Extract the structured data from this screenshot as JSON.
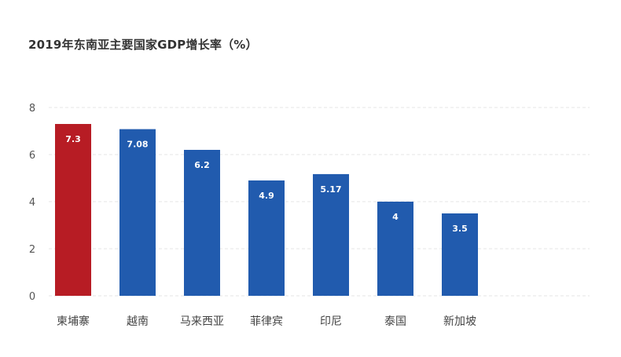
{
  "chart_data": {
    "type": "bar",
    "title": "2019年东南亚主要国家GDP增长率（%）",
    "categories": [
      "柬埔寨",
      "越南",
      "马来西亚",
      "菲律宾",
      "印尼",
      "泰国",
      "新加坡"
    ],
    "values": [
      7.3,
      7.08,
      6.2,
      4.9,
      5.17,
      4,
      3.5
    ],
    "value_labels": [
      "7.3",
      "7.08",
      "6.2",
      "4.9",
      "5.17",
      "4",
      "3.5"
    ],
    "y_ticks": [
      0,
      2,
      4,
      6,
      8
    ],
    "ylim": [
      0,
      8
    ],
    "xlabel": "",
    "ylabel": "",
    "grid": true,
    "colors": {
      "highlight": "#B71C24",
      "default": "#215BAE",
      "grid": "#E6E6E6"
    },
    "highlight_index": 0
  }
}
